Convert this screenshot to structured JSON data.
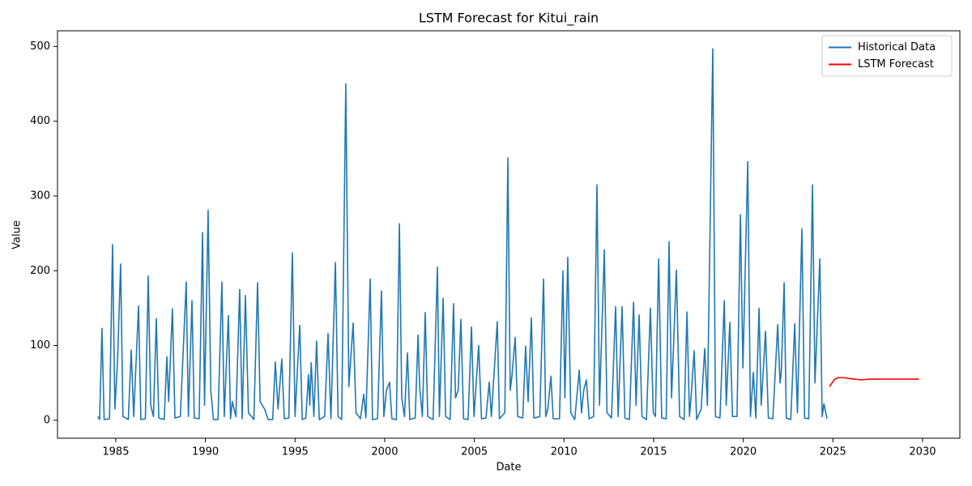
{
  "chart_data": {
    "type": "line",
    "title": "LSTM Forecast for Kitui_rain",
    "xlabel": "Date",
    "ylabel": "Value",
    "xlim": [
      1981.75,
      2032.08
    ],
    "ylim": [
      -24,
      521
    ],
    "xticks": [
      1985,
      1990,
      1995,
      2000,
      2005,
      2010,
      2015,
      2020,
      2025,
      2030
    ],
    "yticks": [
      0,
      100,
      200,
      300,
      400,
      500
    ],
    "legend": "upper right",
    "series": [
      {
        "name": "Historical Data",
        "color": "#1f77b4",
        "x": [
          1984.0,
          1984.1,
          1984.23,
          1984.35,
          1984.65,
          1984.82,
          1984.95,
          1985.1,
          1985.27,
          1985.4,
          1985.7,
          1985.86,
          1986.0,
          1986.27,
          1986.4,
          1986.65,
          1986.81,
          1986.95,
          1987.1,
          1987.26,
          1987.4,
          1987.7,
          1987.85,
          1987.95,
          1988.16,
          1988.3,
          1988.6,
          1988.93,
          1989.05,
          1989.25,
          1989.38,
          1989.65,
          1989.84,
          1989.95,
          1990.15,
          1990.3,
          1990.45,
          1990.7,
          1990.92,
          1991.05,
          1991.28,
          1991.4,
          1991.5,
          1991.7,
          1991.91,
          1992.05,
          1992.23,
          1992.4,
          1992.7,
          1992.91,
          1993.05,
          1993.3,
          1993.5,
          1993.75,
          1993.9,
          1994.05,
          1994.26,
          1994.4,
          1994.65,
          1994.85,
          1995.0,
          1995.26,
          1995.4,
          1995.6,
          1995.75,
          1995.82,
          1995.9,
          1996.05,
          1996.2,
          1996.35,
          1996.65,
          1996.84,
          1997.0,
          1997.25,
          1997.4,
          1997.6,
          1997.83,
          1998.0,
          1998.24,
          1998.4,
          1998.65,
          1998.83,
          1998.95,
          1999.19,
          1999.32,
          1999.6,
          1999.82,
          1999.95,
          2000.1,
          2000.27,
          2000.4,
          2000.65,
          2000.82,
          2000.95,
          2001.1,
          2001.27,
          2001.4,
          2001.7,
          2001.86,
          2001.95,
          2002.1,
          2002.26,
          2002.4,
          2002.7,
          2002.94,
          2003.05,
          2003.26,
          2003.4,
          2003.65,
          2003.84,
          2003.95,
          2004.1,
          2004.25,
          2004.4,
          2004.65,
          2004.84,
          2004.98,
          2005.24,
          2005.4,
          2005.65,
          2005.83,
          2005.95,
          2006.28,
          2006.4,
          2006.7,
          2006.87,
          2007.0,
          2007.1,
          2007.28,
          2007.42,
          2007.7,
          2007.86,
          2008.0,
          2008.18,
          2008.32,
          2008.65,
          2008.86,
          2008.98,
          2009.1,
          2009.27,
          2009.4,
          2009.75,
          2009.94,
          2010.05,
          2010.21,
          2010.38,
          2010.6,
          2010.85,
          2010.98,
          2011.1,
          2011.25,
          2011.4,
          2011.65,
          2011.84,
          2011.98,
          2012.25,
          2012.4,
          2012.65,
          2012.88,
          2013.02,
          2013.24,
          2013.4,
          2013.65,
          2013.88,
          2014.02,
          2014.19,
          2014.35,
          2014.6,
          2014.82,
          2014.98,
          2015.1,
          2015.28,
          2015.45,
          2015.7,
          2015.86,
          2016.0,
          2016.27,
          2016.45,
          2016.7,
          2016.86,
          2017.0,
          2017.1,
          2017.26,
          2017.4,
          2017.65,
          2017.85,
          2018.0,
          2018.3,
          2018.45,
          2018.7,
          2018.94,
          2019.05,
          2019.25,
          2019.4,
          2019.65,
          2019.84,
          2019.98,
          2020.25,
          2020.4,
          2020.56,
          2020.7,
          2020.88,
          2021.0,
          2021.1,
          2021.24,
          2021.4,
          2021.65,
          2021.92,
          2022.05,
          2022.12,
          2022.28,
          2022.4,
          2022.65,
          2022.87,
          2023.02,
          2023.27,
          2023.42,
          2023.65,
          2023.86,
          2024.0,
          2024.27,
          2024.4,
          2024.5,
          2024.67
        ],
        "values": [
          5,
          1,
          123,
          1,
          2,
          235,
          15,
          80,
          209,
          5,
          1,
          94,
          5,
          153,
          1,
          2,
          193,
          20,
          5,
          136,
          3,
          1,
          85,
          25,
          149,
          3,
          5,
          185,
          5,
          160,
          3,
          2,
          251,
          20,
          281,
          40,
          1,
          1,
          185,
          5,
          140,
          2,
          25,
          5,
          175,
          2,
          167,
          10,
          1,
          184,
          25,
          15,
          1,
          1,
          78,
          15,
          82,
          2,
          3,
          224,
          5,
          127,
          1,
          3,
          61,
          20,
          77,
          5,
          106,
          1,
          5,
          116,
          2,
          211,
          5,
          1,
          450,
          45,
          130,
          10,
          2,
          35,
          3,
          189,
          1,
          2,
          173,
          5,
          40,
          51,
          2,
          1,
          263,
          30,
          5,
          90,
          1,
          3,
          114,
          45,
          5,
          144,
          5,
          1,
          205,
          5,
          163,
          5,
          1,
          156,
          30,
          40,
          135,
          2,
          1,
          125,
          5,
          100,
          2,
          3,
          51,
          5,
          132,
          2,
          10,
          351,
          40,
          60,
          111,
          5,
          3,
          99,
          25,
          137,
          3,
          5,
          189,
          5,
          15,
          59,
          2,
          2,
          200,
          30,
          218,
          10,
          1,
          67,
          10,
          40,
          54,
          2,
          5,
          315,
          20,
          228,
          10,
          3,
          152,
          5,
          152,
          3,
          1,
          158,
          20,
          141,
          5,
          1,
          150,
          10,
          5,
          216,
          3,
          2,
          239,
          30,
          201,
          5,
          1,
          145,
          5,
          35,
          93,
          1,
          15,
          96,
          20,
          497,
          5,
          3,
          160,
          20,
          131,
          5,
          5,
          275,
          70,
          346,
          5,
          64,
          3,
          150,
          20,
          60,
          119,
          3,
          2,
          128,
          50,
          65,
          184,
          3,
          1,
          129,
          10,
          256,
          3,
          2,
          315,
          50,
          216,
          5,
          22,
          2
        ]
      },
      {
        "name": "LSTM Forecast",
        "color": "#ff0000",
        "x": [
          2024.81,
          2024.95,
          2025.1,
          2025.3,
          2025.6,
          2025.9,
          2026.2,
          2026.6,
          2027.0,
          2028.0,
          2029.0,
          2029.8
        ],
        "values": [
          45,
          50,
          55,
          57,
          57,
          56,
          55,
          54,
          55,
          55,
          55,
          55
        ]
      }
    ]
  }
}
